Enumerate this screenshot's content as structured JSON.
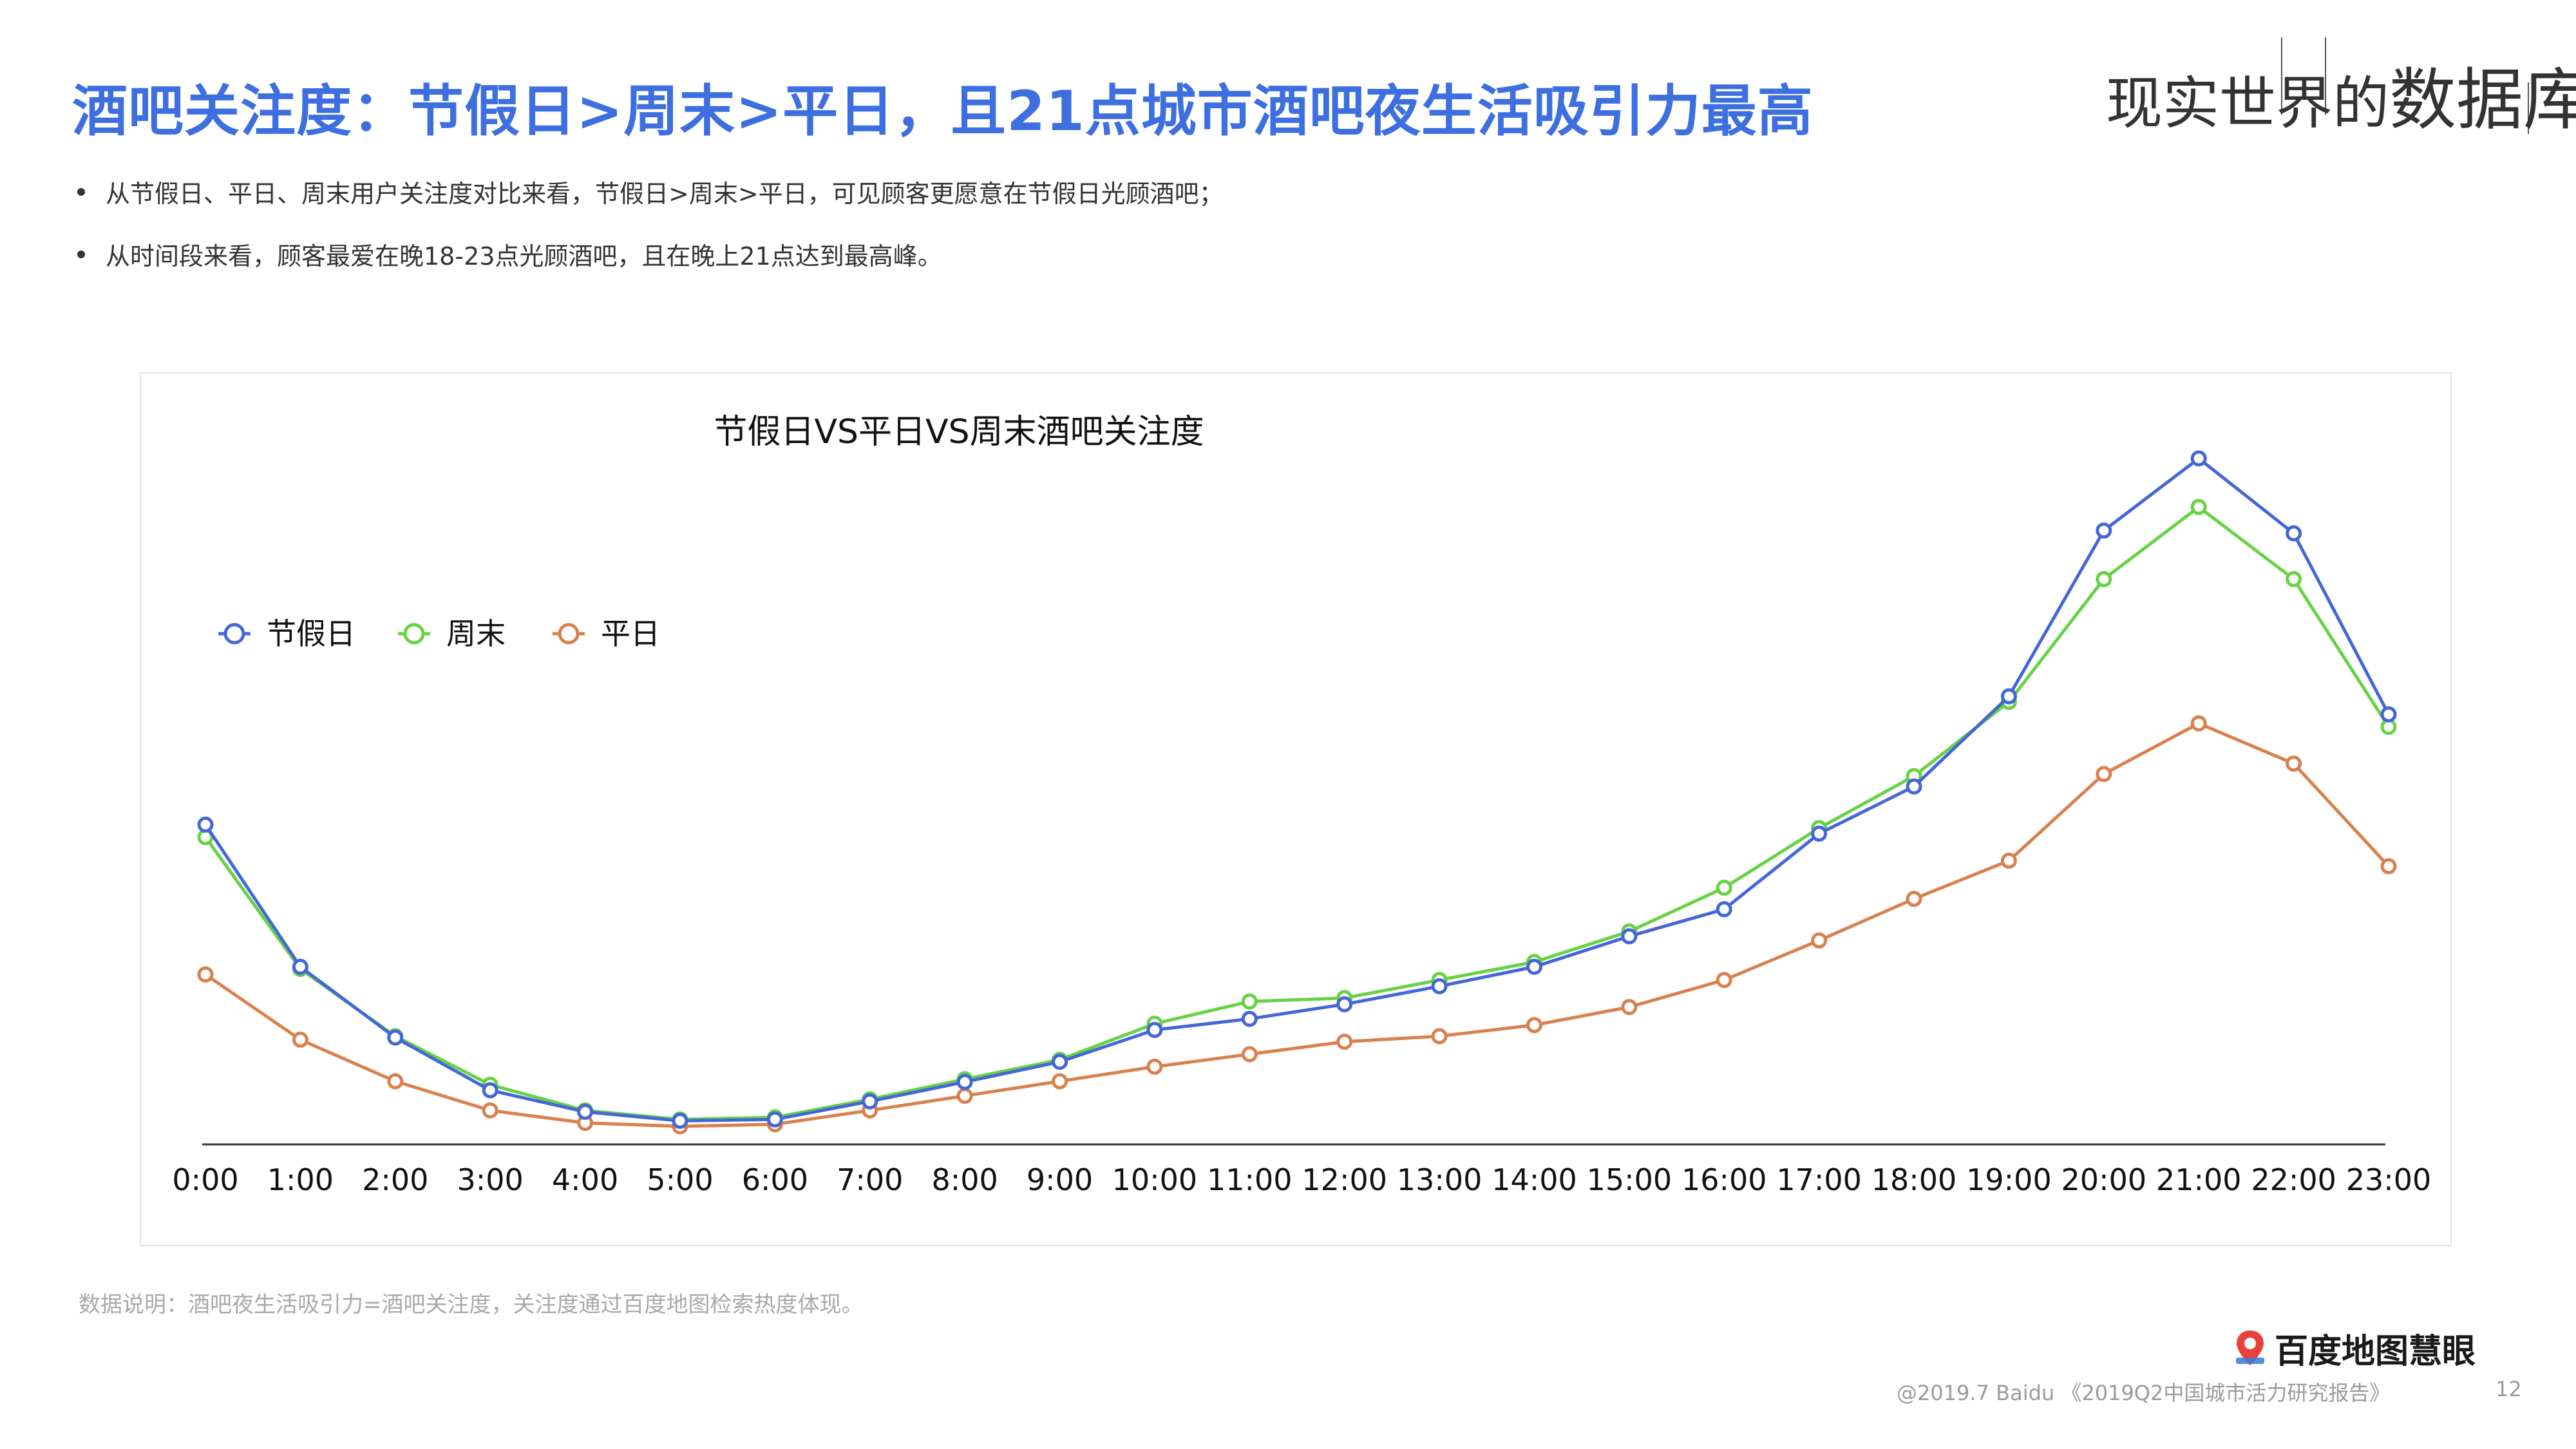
{
  "header": {
    "title": "酒吧关注度：节假日>周末>平日，且21点城市酒吧夜生活吸引力最高",
    "brand_prefix": "现实世界的",
    "brand_suffix": "数据库"
  },
  "bullets": [
    "从节假日、平日、周末用户关注度对比来看，节假日>周末>平日，可见顾客更愿意在节假日光顾酒吧；",
    "从时间段来看，顾客最爱在晚18-23点光顾酒吧，且在晚上21点达到最高峰。"
  ],
  "note": "数据说明：酒吧夜生活吸引力=酒吧关注度，关注度通过百度地图检索热度体现。",
  "logo_text": "百度地图慧眼",
  "footer": "@2019.7 Baidu 《2019Q2中国城市活力研究报告》",
  "page_number": "12",
  "colors": {
    "title": "#3d6fe0",
    "holiday": "#4466d8",
    "weekend": "#66d244",
    "weekday": "#d9814e"
  },
  "chart_data": {
    "type": "line",
    "title": "节假日VS平日VS周末酒吧关注度",
    "xlabel": "",
    "ylabel": "",
    "legend_position": "top-left",
    "grid": false,
    "y_axis_shown": false,
    "ylim": [
      0,
      100
    ],
    "categories": [
      "0:00",
      "1:00",
      "2:00",
      "3:00",
      "4:00",
      "5:00",
      "6:00",
      "7:00",
      "8:00",
      "9:00",
      "10:00",
      "11:00",
      "12:00",
      "13:00",
      "14:00",
      "15:00",
      "16:00",
      "17:00",
      "18:00",
      "19:00",
      "20:00",
      "21:00",
      "22:00",
      "23:00"
    ],
    "series": [
      {
        "name": "节假日",
        "color": "#4466d8",
        "values": [
          46.1,
          25.6,
          15.4,
          7.8,
          4.7,
          3.4,
          3.6,
          6.2,
          9.0,
          11.9,
          16.5,
          18.1,
          20.2,
          22.8,
          25.6,
          30.0,
          33.9,
          44.8,
          51.6,
          64.6,
          88.5,
          98.9,
          88.1,
          62.0
        ]
      },
      {
        "name": "周末",
        "color": "#66d244",
        "values": [
          44.3,
          25.3,
          15.6,
          8.6,
          4.9,
          3.6,
          3.9,
          6.5,
          9.4,
          12.2,
          17.4,
          20.6,
          21.1,
          23.7,
          26.3,
          30.7,
          37.0,
          45.6,
          53.1,
          63.8,
          81.5,
          91.9,
          81.5,
          60.2
        ]
      },
      {
        "name": "平日",
        "color": "#d9814e",
        "values": [
          24.5,
          15.1,
          9.1,
          4.9,
          3.1,
          2.6,
          2.9,
          4.9,
          7.0,
          9.1,
          11.2,
          13.0,
          14.8,
          15.6,
          17.2,
          19.8,
          23.7,
          29.4,
          35.4,
          40.9,
          53.4,
          60.7,
          54.9,
          40.1
        ]
      }
    ]
  }
}
